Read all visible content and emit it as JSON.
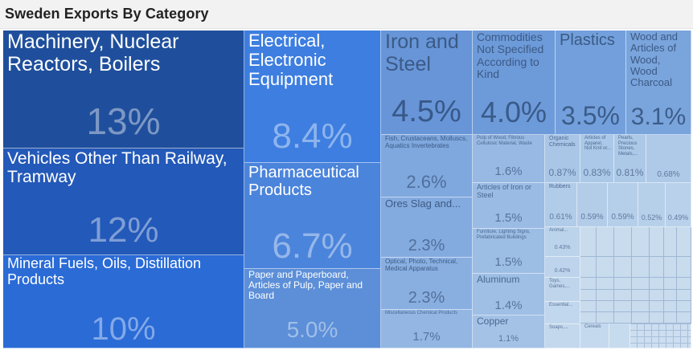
{
  "title": "Sweden Exports By Category",
  "chart_data": {
    "type": "treemap",
    "title": "Sweden Exports By Category",
    "unit": "% of exports",
    "items": [
      {
        "name": "Machinery, Nuclear Reactors, Boilers",
        "value": 13,
        "label": "13%",
        "color": "#1f4f9c"
      },
      {
        "name": "Vehicles Other Than Railway, Tramway",
        "value": 12,
        "label": "12%",
        "color": "#2359b8"
      },
      {
        "name": "Mineral Fuels, Oils, Distillation Products",
        "value": 10,
        "label": "10%",
        "color": "#2a6bd6"
      },
      {
        "name": "Electrical, Electronic Equipment",
        "value": 8.4,
        "label": "8.4%",
        "color": "#3d7ee0"
      },
      {
        "name": "Pharmaceutical Products",
        "value": 6.7,
        "label": "6.7%",
        "color": "#4b84db"
      },
      {
        "name": "Paper and Paperboard, Articles of Pulp, Paper and Board",
        "value": 5.0,
        "label": "5.0%",
        "color": "#5c8fd8"
      },
      {
        "name": "Iron and Steel",
        "value": 4.5,
        "label": "4.5%",
        "color": "#6795d8"
      },
      {
        "name": "Commodities Not Specified According to Kind",
        "value": 4.0,
        "label": "4.0%",
        "color": "#6d9ad9"
      },
      {
        "name": "Plastics",
        "value": 3.5,
        "label": "3.5%",
        "color": "#73a0dc"
      },
      {
        "name": "Wood and Articles of Wood, Wood Charcoal",
        "value": 3.1,
        "label": "3.1%",
        "color": "#7aa4dc"
      },
      {
        "name": "Fish, Crustaceans, Molluscs, Aquatics Invertebrates",
        "value": 2.6,
        "label": "2.6%",
        "color": "#7fa8de"
      },
      {
        "name": "Ores Slag and...",
        "value": 2.3,
        "label": "2.3%",
        "color": "#84abdf"
      },
      {
        "name": "Optical, Photo, Technical, Medical Apparatus",
        "value": 2.3,
        "label": "2.3%",
        "color": "#89afe1"
      },
      {
        "name": "Miscellaneous Chemical Products",
        "value": 1.7,
        "label": "1.7%",
        "color": "#93b6e3"
      },
      {
        "name": "Pulp of Wood, Fibrous Cellulosic Material, Waste",
        "value": 1.6,
        "label": "1.6%",
        "color": "#97b9e3"
      },
      {
        "name": "Articles of Iron or Steel",
        "value": 1.5,
        "label": "1.5%",
        "color": "#99bbe4"
      },
      {
        "name": "Furniture, Lighting Signs, Prefabricated Buildings",
        "value": 1.5,
        "label": "1.5%",
        "color": "#9cbde4"
      },
      {
        "name": "Aluminum",
        "value": 1.4,
        "label": "1.4%",
        "color": "#9fbfe5"
      },
      {
        "name": "Copper",
        "value": 1.1,
        "label": "1.1%",
        "color": "#a3c2e6"
      },
      {
        "name": "Organic Chemicals",
        "value": 0.87,
        "label": "0.87%",
        "color": "#a9c6e7"
      },
      {
        "name": "Articles of Apparel, Not Knit or...",
        "value": 0.83,
        "label": "0.83%",
        "color": "#abc8e8"
      },
      {
        "name": "Pearls, Precious Stones, Metals,...",
        "value": 0.81,
        "label": "0.81%",
        "color": "#adc9e8"
      },
      {
        "name": "",
        "value": 0.68,
        "label": "0.68%",
        "color": "#afcae8"
      },
      {
        "name": "Rubbers",
        "value": 0.61,
        "label": "0.61%",
        "color": "#b1cce9"
      },
      {
        "name": "",
        "value": 0.59,
        "label": "0.59%",
        "color": "#b3cde9"
      },
      {
        "name": "",
        "value": 0.59,
        "label": "0.59%",
        "color": "#b5cfea"
      },
      {
        "name": "",
        "value": 0.52,
        "label": "0.52%",
        "color": "#b7d0ea"
      },
      {
        "name": "",
        "value": 0.49,
        "label": "0.49%",
        "color": "#b9d1eb"
      },
      {
        "name": "Animal...",
        "value": 0.43,
        "label": "0.43%",
        "color": "#bbd3eb"
      },
      {
        "name": "",
        "value": 0.42,
        "label": "0.42%",
        "color": "#bdd4ec"
      },
      {
        "name": "Toys, Games,...",
        "value": null,
        "label": "",
        "color": "#bfd5ec"
      },
      {
        "name": "Essential...",
        "value": null,
        "label": "",
        "color": "#c1d7ed"
      },
      {
        "name": "Soaps,...",
        "value": null,
        "label": "",
        "color": "#c3d8ed"
      },
      {
        "name": "Cereals",
        "value": null,
        "label": "",
        "color": "#c5d9ee"
      },
      {
        "name": "",
        "value": null,
        "label": "",
        "color": "#c7dbee"
      }
    ]
  }
}
